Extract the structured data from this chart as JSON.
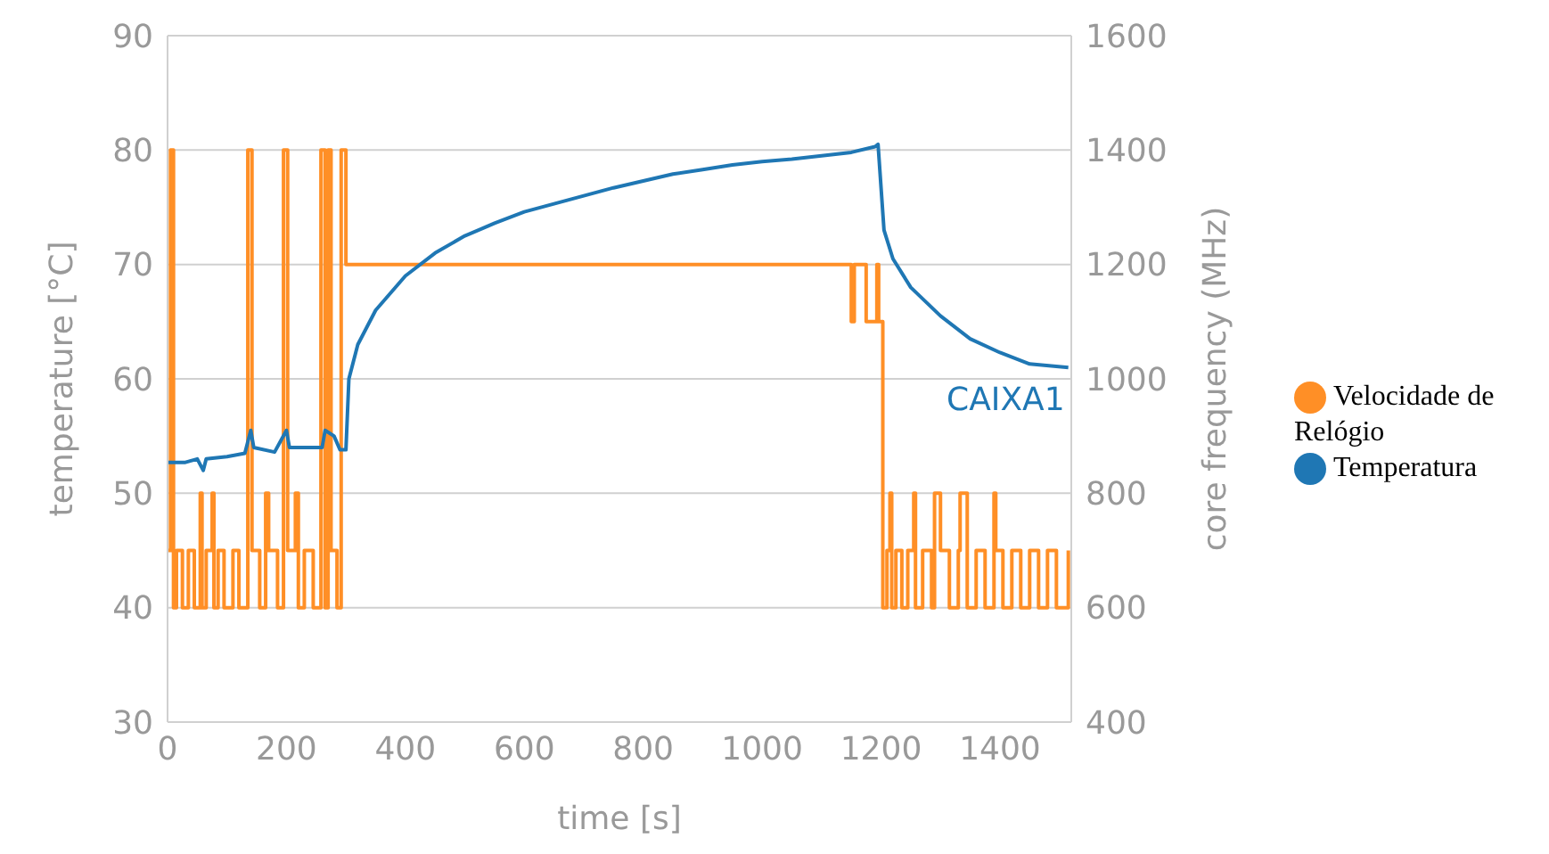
{
  "chart_data": {
    "type": "line",
    "xlabel": "time [s]",
    "ylabel": "temperature [°C]",
    "y2label": "core frequency (MHz)",
    "xlim": [
      0,
      1520
    ],
    "xticks": [
      0,
      200,
      400,
      600,
      800,
      1000,
      1200,
      1400
    ],
    "ylim": [
      30,
      90
    ],
    "yticks": [
      30,
      40,
      50,
      60,
      70,
      80,
      90
    ],
    "y2lim": [
      400,
      1600
    ],
    "y2ticks": [
      400,
      600,
      800,
      1000,
      1200,
      1400,
      1600
    ],
    "grid": "y",
    "legend": "right",
    "marker": "none",
    "line_style": "solid",
    "annotations": [
      {
        "text": "CAIXA1",
        "x": 1515,
        "y": 61
      }
    ],
    "series": [
      {
        "name": "Velocidade de Relógio",
        "color": "#ff8f26",
        "axis": "y2",
        "type": "step",
        "x": [
          0,
          5,
          10,
          15,
          25,
          35,
          45,
          55,
          58,
          65,
          75,
          78,
          85,
          95,
          110,
          120,
          135,
          142,
          155,
          165,
          170,
          185,
          195,
          202,
          215,
          220,
          230,
          245,
          258,
          265,
          270,
          275,
          285,
          292,
          300,
          1150,
          1155,
          1175,
          1193,
          1196,
          1203,
          1210,
          1215,
          1218,
          1225,
          1235,
          1245,
          1255,
          1258,
          1270,
          1285,
          1290,
          1300,
          1315,
          1330,
          1333,
          1345,
          1360,
          1375,
          1390,
          1393,
          1405,
          1420,
          1435,
          1450,
          1465,
          1480,
          1495,
          1515
        ],
        "values": [
          700,
          1400,
          600,
          700,
          600,
          700,
          600,
          800,
          600,
          700,
          800,
          600,
          700,
          600,
          700,
          600,
          1400,
          700,
          600,
          800,
          700,
          600,
          1400,
          700,
          800,
          600,
          700,
          600,
          1400,
          600,
          1400,
          700,
          600,
          1400,
          1200,
          1100,
          1200,
          1100,
          1200,
          1100,
          600,
          700,
          800,
          600,
          700,
          600,
          700,
          800,
          600,
          700,
          600,
          800,
          700,
          600,
          700,
          800,
          600,
          700,
          600,
          800,
          700,
          600,
          700,
          600,
          700,
          600,
          700,
          600,
          700
        ]
      },
      {
        "name": "Temperatura",
        "color": "#1f77b4",
        "x": [
          0,
          30,
          50,
          60,
          65,
          100,
          130,
          140,
          145,
          180,
          200,
          205,
          260,
          265,
          280,
          290,
          300,
          305,
          320,
          350,
          400,
          450,
          500,
          550,
          600,
          650,
          700,
          750,
          800,
          850,
          900,
          950,
          1000,
          1050,
          1100,
          1150,
          1190,
          1195,
          1205,
          1220,
          1250,
          1300,
          1350,
          1400,
          1450,
          1515
        ],
        "values": [
          52.7,
          52.7,
          53,
          52,
          53,
          53.2,
          53.5,
          55.5,
          54,
          53.6,
          55.5,
          54,
          54,
          55.5,
          55,
          53.8,
          53.8,
          60,
          63,
          66,
          69,
          71,
          72.5,
          73.6,
          74.6,
          75.3,
          76,
          76.7,
          77.3,
          77.9,
          78.3,
          78.7,
          79,
          79.2,
          79.5,
          79.8,
          80.3,
          80.5,
          73,
          70.5,
          68,
          65.5,
          63.5,
          62.3,
          61.3,
          61
        ]
      }
    ]
  }
}
